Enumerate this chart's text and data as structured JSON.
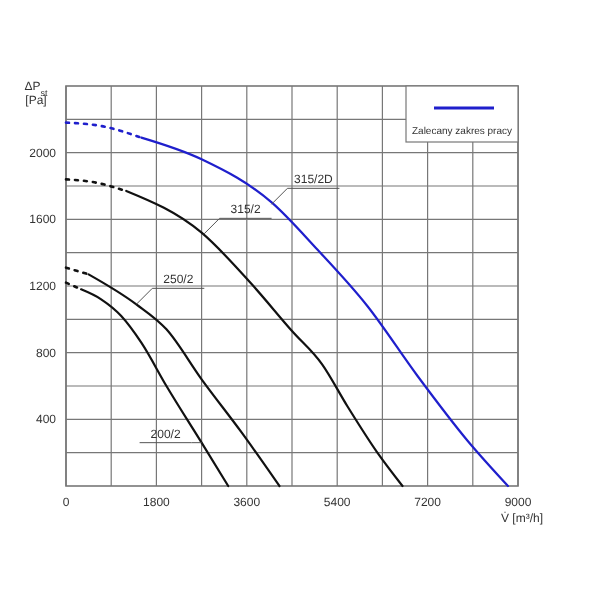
{
  "chart_data": {
    "type": "line",
    "xlabel": "V̇ [m³/h]",
    "ylabel": "ΔP$_{st}$ [Pa]",
    "xlim": [
      0,
      9000
    ],
    "ylim": [
      0,
      2400
    ],
    "xticks": [
      0,
      {
        "value": 900,
        "label": null
      },
      1800,
      {
        "value": 2700,
        "label": null
      },
      3600,
      {
        "value": 4500,
        "label": null
      },
      5400,
      {
        "value": 6300,
        "label": null
      },
      7200,
      {
        "value": 8100,
        "label": null
      },
      9000
    ],
    "yticks": [
      {
        "value": 200,
        "label": null
      },
      400,
      {
        "value": 600,
        "label": null
      },
      800,
      {
        "value": 1000,
        "label": null
      },
      1200,
      {
        "value": 1400,
        "label": null
      },
      1600,
      {
        "value": 1800,
        "label": null
      },
      2000,
      {
        "value": 2200,
        "label": null
      }
    ],
    "grid": true,
    "legend": "top right",
    "marker": "none",
    "series": [
      {
        "color": "#1f1fcc",
        "line_style": "dotted",
        "x": [
          0,
          700,
          1500
        ],
        "values": [
          2180,
          2160,
          2090
        ]
      },
      {
        "name": "Zalecany zakres pracy",
        "color": "#1f1fcc",
        "line_style": "solid",
        "x": [
          1500,
          2700,
          4100,
          5000,
          6000,
          7000,
          8000,
          8800
        ],
        "values": [
          2090,
          1960,
          1700,
          1420,
          1080,
          660,
          270,
          0
        ]
      },
      {
        "color": "#111111",
        "line_style": "dotted",
        "x": [
          0,
          600,
          1190
        ],
        "values": [
          1840,
          1820,
          1770
        ]
      },
      {
        "color": "#111111",
        "line_style": "solid",
        "x": [
          1200,
          2700,
          3700,
          4500,
          5100,
          5600,
          6200,
          6700
        ],
        "values": [
          1770,
          1520,
          1210,
          930,
          730,
          480,
          200,
          0
        ]
      },
      {
        "color": "#111111",
        "line_style": "dotted",
        "x": [
          0,
          450
        ],
        "values": [
          1310,
          1270
        ]
      },
      {
        "color": "#111111",
        "line_style": "solid",
        "x": [
          450,
          1400,
          2000,
          2700,
          3500,
          4250
        ],
        "values": [
          1270,
          1090,
          940,
          640,
          320,
          0
        ]
      },
      {
        "color": "#111111",
        "line_style": "dotted",
        "x": [
          0,
          300
        ],
        "values": [
          1220,
          1180
        ]
      },
      {
        "color": "#111111",
        "line_style": "solid",
        "x": [
          300,
          700,
          1100,
          1500,
          2000,
          2700,
          3230
        ],
        "values": [
          1180,
          1120,
          1020,
          860,
          600,
          260,
          0
        ]
      }
    ],
    "annotations": [
      {
        "text": "315/2D",
        "x": 4090,
        "y": 1690
      },
      {
        "text": "315/2",
        "x": 2740,
        "y": 1510
      },
      {
        "text": "250/2",
        "x": 1400,
        "y": 1090
      },
      {
        "text": "200/2",
        "x": 2700,
        "y": 260
      }
    ]
  }
}
